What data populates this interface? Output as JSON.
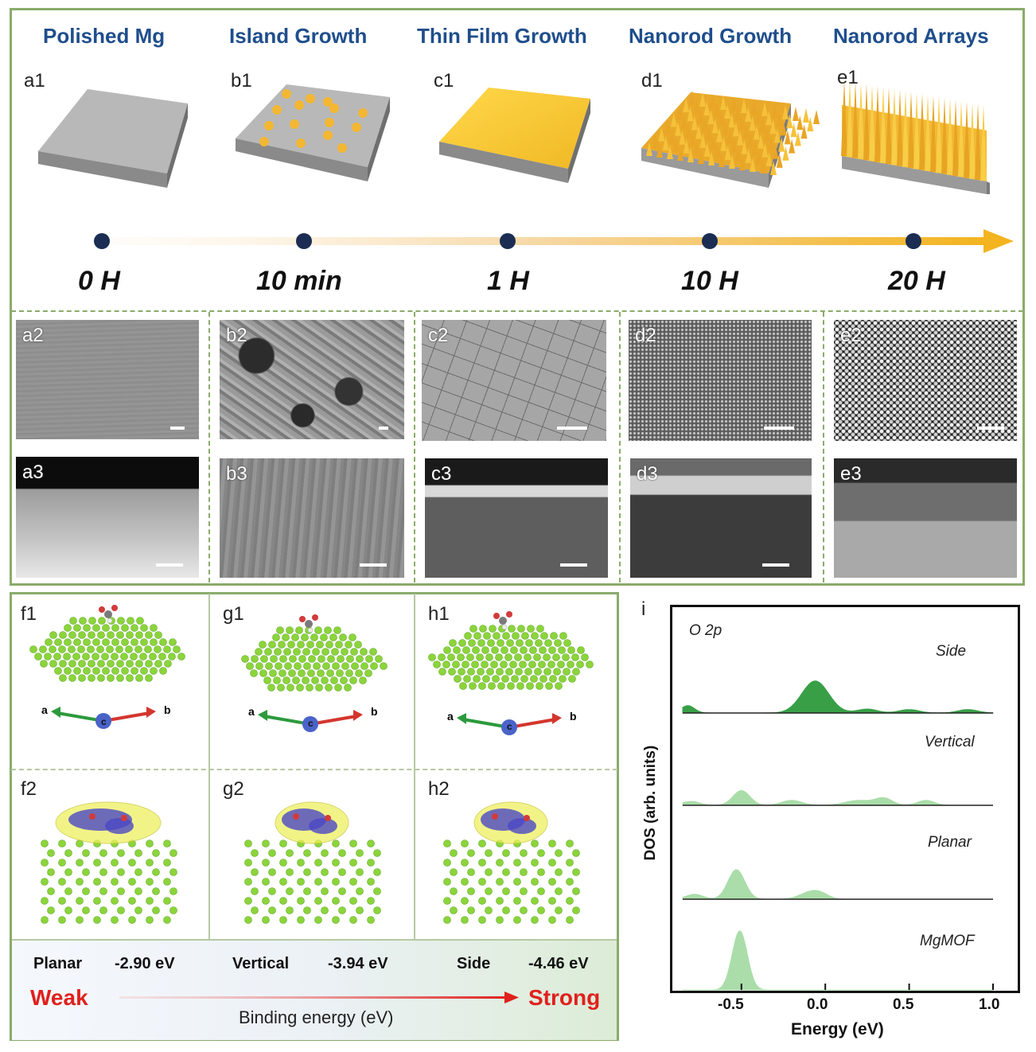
{
  "top": {
    "stages": [
      {
        "title": "Polished Mg",
        "scheme_label": "a1",
        "time": "0 H",
        "sem_top_label": "a2",
        "sem_bottom_label": "a3"
      },
      {
        "title": "Island Growth",
        "scheme_label": "b1",
        "time": "10 min",
        "sem_top_label": "b2",
        "sem_bottom_label": "b3"
      },
      {
        "title": "Thin Film Growth",
        "scheme_label": "c1",
        "time": "1 H",
        "sem_top_label": "c2",
        "sem_bottom_label": "c3"
      },
      {
        "title": "Nanorod Growth",
        "scheme_label": "d1",
        "time": "10 H",
        "sem_top_label": "d2",
        "sem_bottom_label": "d3"
      },
      {
        "title": "Nanorod Arrays",
        "scheme_label": "e1",
        "time": "20 H",
        "sem_top_label": "e2",
        "sem_bottom_label": "e3"
      }
    ],
    "colors": {
      "frame": "#8aab6a",
      "title": "#1f4e8c",
      "gold": "#f2c03a",
      "substrate": "#a8a8a8",
      "dot": "#1b2d52"
    }
  },
  "bottom_left": {
    "models": [
      {
        "label1": "f1",
        "label2": "f2"
      },
      {
        "label1": "g1",
        "label2": "g2"
      },
      {
        "label1": "h1",
        "label2": "h2"
      }
    ],
    "axes": {
      "a": "a",
      "b": "b",
      "c": "c"
    },
    "energies": [
      {
        "name": "Planar",
        "value": "-2.90 eV"
      },
      {
        "name": "Vertical",
        "value": "-3.94 eV"
      },
      {
        "name": "Side",
        "value": "-4.46 eV"
      }
    ],
    "weak": "Weak",
    "strong": "Strong",
    "binding_label": "Binding energy (eV)"
  },
  "panel_i": {
    "label": "i",
    "chart_data": {
      "type": "area",
      "title": "O 2p",
      "xlabel": "Energy (eV)",
      "ylabel": "DOS (arb. units)",
      "xlim": [
        -0.85,
        1.0
      ],
      "xticks": [
        "-0.5",
        "0.0",
        "0.5",
        "1.0"
      ],
      "series": [
        {
          "name": "Side",
          "peaks": [
            [
              -0.82,
              0.15,
              0.04
            ],
            [
              -0.06,
              0.65,
              0.08
            ],
            [
              0.25,
              0.08,
              0.06
            ],
            [
              0.5,
              0.07,
              0.06
            ],
            [
              0.85,
              0.07,
              0.06
            ]
          ]
        },
        {
          "name": "Vertical",
          "peaks": [
            [
              -0.8,
              0.08,
              0.05
            ],
            [
              -0.5,
              0.3,
              0.05
            ],
            [
              -0.2,
              0.1,
              0.06
            ],
            [
              0.2,
              0.1,
              0.08
            ],
            [
              0.35,
              0.14,
              0.05
            ],
            [
              0.6,
              0.1,
              0.05
            ]
          ]
        },
        {
          "name": "Planar",
          "peaks": [
            [
              -0.78,
              0.1,
              0.05
            ],
            [
              -0.53,
              0.6,
              0.05
            ],
            [
              -0.1,
              0.12,
              0.06
            ],
            [
              -0.03,
              0.1,
              0.05
            ]
          ]
        },
        {
          "name": "MgMOF",
          "peaks": [
            [
              -0.51,
              1.2,
              0.045
            ]
          ]
        }
      ],
      "colors": {
        "Side": "#2e9a3e",
        "other": "#a6dca5"
      }
    }
  }
}
